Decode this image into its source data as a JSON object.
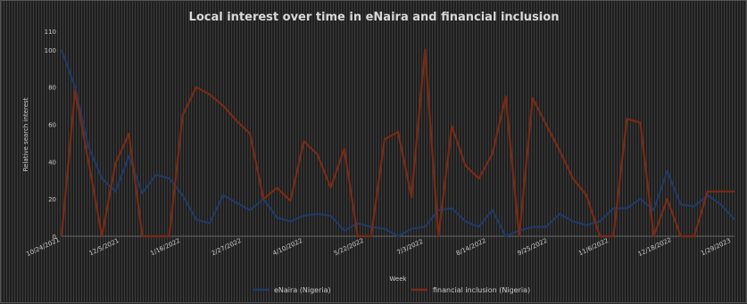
{
  "chart_data": {
    "type": "line",
    "title": "Local interest over time in eNaira and financial inclusion",
    "xlabel": "Week",
    "ylabel": "Relative search interest",
    "ylim": [
      0,
      110
    ],
    "yticks": [
      "0",
      "20",
      "40",
      "60",
      "80",
      "100",
      "110"
    ],
    "x_tick_labels": [
      "10/24/2021",
      "12/5/2021",
      "1/16/2022",
      "2/27/2022",
      "4/10/2022",
      "5/22/2022",
      "7/3/2022",
      "8/14/2022",
      "9/25/2022",
      "11/6/2022",
      "12/18/2022",
      "1/29/2023"
    ],
    "legend_position": "bottom",
    "grid": false,
    "series": [
      {
        "name": "eNaira (Nigeria)",
        "color": "#1f3a66",
        "values": [
          100,
          80,
          48,
          31,
          24,
          43,
          23,
          33,
          31,
          22,
          9,
          7,
          22,
          18,
          14,
          20,
          10,
          8,
          11,
          12,
          11,
          3,
          7,
          5,
          4,
          0,
          4,
          5,
          14,
          15,
          8,
          5,
          14,
          0,
          3,
          5,
          5,
          12,
          8,
          6,
          8,
          15,
          15,
          20,
          14,
          35,
          17,
          16,
          22,
          17,
          9
        ]
      },
      {
        "name": "financial inclusion (Nigeria)",
        "color": "#7a2a14",
        "values": [
          0,
          78,
          40,
          0,
          39,
          55,
          0,
          0,
          0,
          65,
          80,
          76,
          70,
          62,
          55,
          20,
          26,
          19,
          51,
          44,
          26,
          47,
          0,
          0,
          52,
          56,
          21,
          100,
          0,
          59,
          38,
          31,
          44,
          75,
          0,
          74,
          60,
          46,
          31,
          22,
          0,
          0,
          63,
          61,
          0,
          20,
          0,
          0,
          24,
          24,
          24
        ]
      }
    ]
  }
}
